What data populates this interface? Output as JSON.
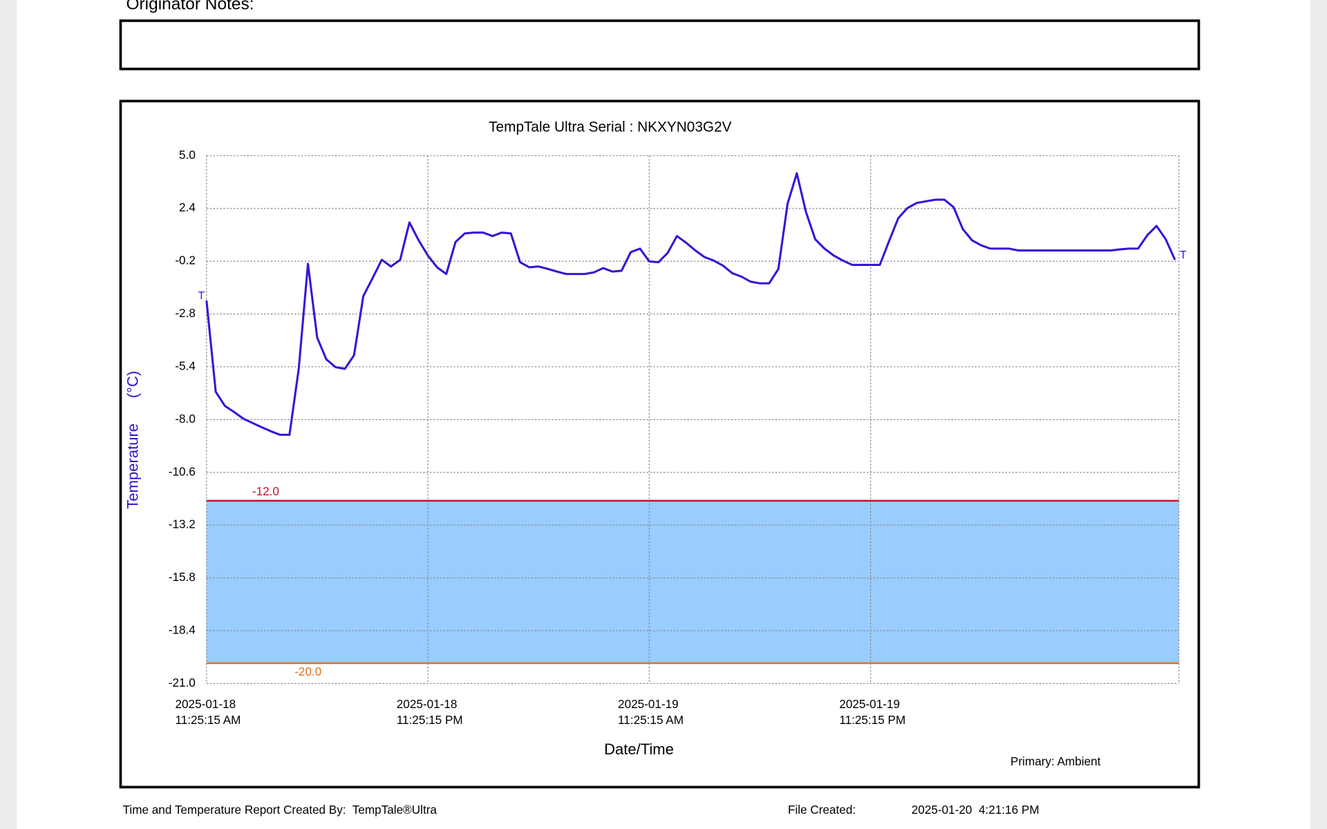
{
  "header": {
    "notes_label": "Originator Notes:"
  },
  "chart_data": {
    "type": "line",
    "title": "TempTale Ultra  Serial : NKXYN03G2V",
    "y_label": "Temperature      (°C)",
    "x_label": "Date/Time",
    "legend": "Primary: Ambient",
    "color": "#3a12d6",
    "grid": true,
    "ylim": [
      -21,
      5
    ],
    "yticks": [
      {
        "value": 5,
        "label": "5.0"
      },
      2.4,
      -0.2,
      -2.8,
      -5.4,
      {
        "value": -8,
        "label": "-8.0"
      },
      -10.6,
      -13.2,
      -15.8,
      -18.4,
      {
        "value": -21,
        "label": "-21.0"
      }
    ],
    "xlim": [
      "2025-01-18T11:25:15",
      "2025-01-20T16:08:00"
    ],
    "xticks": [
      {
        "value": "2025-01-18T11:25:15",
        "label": "2025-01-18 11:25:15 AM"
      },
      {
        "value": "2025-01-18T23:25:15",
        "label": "2025-01-18 11:25:15 PM"
      },
      {
        "value": "2025-01-19T11:25:15",
        "label": "2025-01-19 11:25:15 AM"
      },
      {
        "value": "2025-01-19T23:25:15",
        "label": "2025-01-19 11:25:15 PM"
      }
    ],
    "thresholds": [
      {
        "value": -12,
        "label": "-12.0",
        "color": "#c8102e"
      },
      {
        "value": -20,
        "label": "-20.0",
        "color": "#e07020"
      }
    ],
    "band_fill": "#99ccff",
    "trip_markers": [
      "T",
      "T"
    ],
    "x": [
      "2025-01-18T11:25:15",
      "2025-01-18T11:55:15",
      "2025-01-18T12:25:15",
      "2025-01-18T12:55:15",
      "2025-01-18T13:25:15",
      "2025-01-18T13:55:15",
      "2025-01-18T14:25:15",
      "2025-01-18T14:55:15",
      "2025-01-18T15:25:15",
      "2025-01-18T15:55:15",
      "2025-01-18T16:25:15",
      "2025-01-18T16:55:15",
      "2025-01-18T17:25:15",
      "2025-01-18T17:55:15",
      "2025-01-18T18:25:15",
      "2025-01-18T18:55:15",
      "2025-01-18T19:25:15",
      "2025-01-18T19:55:15",
      "2025-01-18T20:25:15",
      "2025-01-18T20:55:15",
      "2025-01-18T21:25:15",
      "2025-01-18T21:55:15",
      "2025-01-18T22:25:15",
      "2025-01-18T22:55:15",
      "2025-01-18T23:25:15",
      "2025-01-18T23:55:15",
      "2025-01-19T00:25:15",
      "2025-01-19T00:55:15",
      "2025-01-19T01:25:15",
      "2025-01-19T01:55:15",
      "2025-01-19T02:25:15",
      "2025-01-19T02:55:15",
      "2025-01-19T03:25:15",
      "2025-01-19T03:55:15",
      "2025-01-19T04:25:15",
      "2025-01-19T04:55:15",
      "2025-01-19T05:25:15",
      "2025-01-19T05:55:15",
      "2025-01-19T06:25:15",
      "2025-01-19T06:55:15",
      "2025-01-19T07:25:15",
      "2025-01-19T07:55:15",
      "2025-01-19T08:25:15",
      "2025-01-19T08:55:15",
      "2025-01-19T09:25:15",
      "2025-01-19T09:55:15",
      "2025-01-19T10:25:15",
      "2025-01-19T10:55:15",
      "2025-01-19T11:25:15",
      "2025-01-19T11:55:15",
      "2025-01-19T12:25:15",
      "2025-01-19T12:55:15",
      "2025-01-19T13:25:15",
      "2025-01-19T13:55:15",
      "2025-01-19T14:25:15",
      "2025-01-19T14:55:15",
      "2025-01-19T15:25:15",
      "2025-01-19T15:55:15",
      "2025-01-19T16:25:15",
      "2025-01-19T16:55:15",
      "2025-01-19T17:25:15",
      "2025-01-19T17:55:15",
      "2025-01-19T18:25:15",
      "2025-01-19T18:55:15",
      "2025-01-19T19:25:15",
      "2025-01-19T19:55:15",
      "2025-01-19T20:25:15",
      "2025-01-19T20:55:15",
      "2025-01-19T21:25:15",
      "2025-01-19T21:55:15",
      "2025-01-19T22:25:15",
      "2025-01-19T22:55:15",
      "2025-01-19T23:25:15",
      "2025-01-19T23:55:15",
      "2025-01-20T00:25:15",
      "2025-01-20T00:55:15",
      "2025-01-20T01:25:15",
      "2025-01-20T01:55:15",
      "2025-01-20T02:25:15",
      "2025-01-20T02:55:15",
      "2025-01-20T03:25:15",
      "2025-01-20T03:55:15",
      "2025-01-20T04:25:15",
      "2025-01-20T04:55:15",
      "2025-01-20T05:25:15",
      "2025-01-20T05:55:15",
      "2025-01-20T06:25:15",
      "2025-01-20T06:55:15",
      "2025-01-20T07:25:15",
      "2025-01-20T07:55:15",
      "2025-01-20T08:25:15",
      "2025-01-20T08:55:15",
      "2025-01-20T09:25:15",
      "2025-01-20T09:55:15",
      "2025-01-20T10:25:15",
      "2025-01-20T10:55:15",
      "2025-01-20T11:25:15",
      "2025-01-20T11:55:15",
      "2025-01-20T12:25:15",
      "2025-01-20T12:55:15",
      "2025-01-20T13:25:15",
      "2025-01-20T13:55:15",
      "2025-01-20T14:25:15",
      "2025-01-20T14:55:15",
      "2025-01-20T15:25:15",
      "2025-01-20T15:55:15"
    ],
    "values": [
      -2.13,
      -6.63,
      -7.33,
      -7.63,
      -7.96,
      -8.17,
      -8.38,
      -8.58,
      -8.75,
      -8.75,
      -5.5,
      -0.33,
      -3.96,
      -5.04,
      -5.42,
      -5.5,
      -4.83,
      -1.92,
      -1.04,
      -0.13,
      -0.46,
      -0.13,
      1.71,
      0.83,
      0.08,
      -0.5,
      -0.83,
      0.75,
      1.17,
      1.21,
      1.21,
      1.04,
      1.21,
      1.17,
      -0.25,
      -0.5,
      -0.46,
      -0.58,
      -0.71,
      -0.83,
      -0.83,
      -0.83,
      -0.75,
      -0.54,
      -0.71,
      -0.67,
      0.25,
      0.42,
      -0.21,
      -0.25,
      0.21,
      1.04,
      0.71,
      0.33,
      0.0,
      -0.17,
      -0.42,
      -0.79,
      -0.96,
      -1.21,
      -1.29,
      -1.29,
      -0.58,
      2.63,
      4.13,
      2.21,
      0.88,
      0.42,
      0.08,
      -0.17,
      -0.38,
      -0.38,
      -0.38,
      -0.38,
      0.79,
      1.92,
      2.42,
      2.67,
      2.75,
      2.83,
      2.83,
      2.46,
      1.38,
      0.83,
      0.58,
      0.42,
      0.42,
      0.42,
      0.33,
      0.33,
      0.33,
      0.33,
      0.33,
      0.33,
      0.33,
      0.33,
      0.33,
      0.33,
      0.33,
      0.38,
      0.42,
      0.42,
      1.08,
      1.54,
      0.88,
      -0.13
    ]
  },
  "footer": {
    "created_by": "Time and Temperature Report Created By:  TempTale®Ultra",
    "file_created_label": "File Created:",
    "file_created": "2025-01-20  4:21:16 PM"
  }
}
